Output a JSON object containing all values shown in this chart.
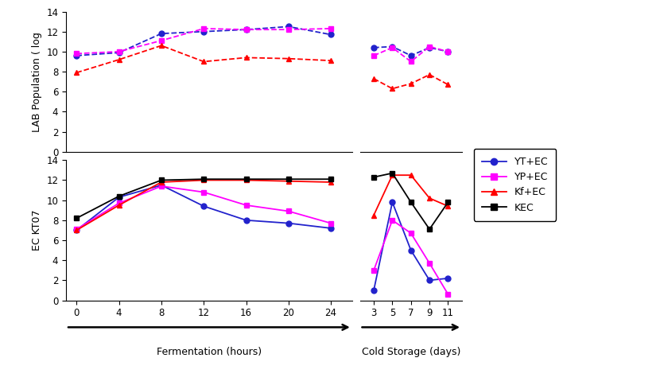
{
  "top_YT_ferment_x": [
    0,
    4,
    8,
    12,
    16,
    20,
    24
  ],
  "top_YT_ferment_y": [
    9.6,
    9.9,
    11.8,
    12.0,
    12.2,
    12.5,
    11.7
  ],
  "top_YT_cold_x": [
    3,
    5,
    7,
    9,
    11
  ],
  "top_YT_cold_y": [
    10.4,
    10.5,
    9.6,
    10.4,
    10.0
  ],
  "top_YP_ferment_x": [
    0,
    4,
    8,
    12,
    16,
    20,
    24
  ],
  "top_YP_ferment_y": [
    9.8,
    10.0,
    11.1,
    12.3,
    12.2,
    12.2,
    12.3
  ],
  "top_YP_cold_x": [
    3,
    5,
    7,
    9,
    11
  ],
  "top_YP_cold_y": [
    9.6,
    10.4,
    9.0,
    10.5,
    10.0
  ],
  "top_Kf_ferment_x": [
    0,
    4,
    8,
    12,
    16,
    20,
    24
  ],
  "top_Kf_ferment_y": [
    7.9,
    9.2,
    10.6,
    9.0,
    9.4,
    9.3,
    9.1
  ],
  "top_Kf_cold_x": [
    3,
    5,
    7,
    9,
    11
  ],
  "top_Kf_cold_y": [
    7.3,
    6.3,
    6.8,
    7.7,
    6.7
  ],
  "bot_YT_ferment_x": [
    0,
    4,
    8,
    12,
    16,
    20,
    24
  ],
  "bot_YT_ferment_y": [
    7.0,
    10.3,
    11.5,
    9.4,
    8.0,
    7.7,
    7.2
  ],
  "bot_YT_cold_x": [
    3,
    5,
    7,
    9,
    11
  ],
  "bot_YT_cold_y": [
    1.0,
    9.8,
    5.0,
    2.0,
    2.2
  ],
  "bot_YP_ferment_x": [
    0,
    4,
    8,
    12,
    16,
    20,
    24
  ],
  "bot_YP_ferment_y": [
    7.1,
    9.7,
    11.4,
    10.8,
    9.5,
    8.9,
    7.7
  ],
  "bot_YP_cold_x": [
    3,
    5,
    7,
    9,
    11
  ],
  "bot_YP_cold_y": [
    3.0,
    8.0,
    6.7,
    3.7,
    0.6
  ],
  "bot_Kf_ferment_x": [
    0,
    4,
    8,
    12,
    16,
    20,
    24
  ],
  "bot_Kf_ferment_y": [
    7.0,
    9.5,
    11.8,
    12.0,
    12.0,
    11.9,
    11.8
  ],
  "bot_Kf_cold_x": [
    3,
    5,
    7,
    9,
    11
  ],
  "bot_Kf_cold_y": [
    8.5,
    12.5,
    12.5,
    10.2,
    9.4
  ],
  "bot_KEC_ferment_x": [
    0,
    4,
    8,
    12,
    16,
    20,
    24
  ],
  "bot_KEC_ferment_y": [
    8.2,
    10.4,
    12.0,
    12.1,
    12.1,
    12.1,
    12.1
  ],
  "bot_KEC_cold_x": [
    3,
    5,
    7,
    9,
    11
  ],
  "bot_KEC_cold_y": [
    12.3,
    12.7,
    9.8,
    7.1,
    9.8
  ],
  "color_YT": "#2222CC",
  "color_YP": "#FF00FF",
  "color_Kf": "#FF0000",
  "color_KEC": "#000000",
  "top_ylabel": "LAB Population ( log",
  "bot_ylabel": "EC KT07",
  "xlabel_ferment": "Fermentation (hours)",
  "xlabel_cold": "Cold Storage (days)",
  "legend_labels": [
    "YT+EC",
    "YP+EC",
    "Kf+EC",
    "KEC"
  ],
  "ylim": [
    0,
    14
  ],
  "yticks": [
    0,
    2,
    4,
    6,
    8,
    10,
    12,
    14
  ],
  "ferment_xticks": [
    0,
    4,
    8,
    12,
    16,
    20,
    24
  ],
  "cold_xticks": [
    3,
    5,
    7,
    9,
    11
  ],
  "ferment_xlim": [
    -1,
    26
  ],
  "cold_xlim": [
    1.5,
    12.5
  ]
}
